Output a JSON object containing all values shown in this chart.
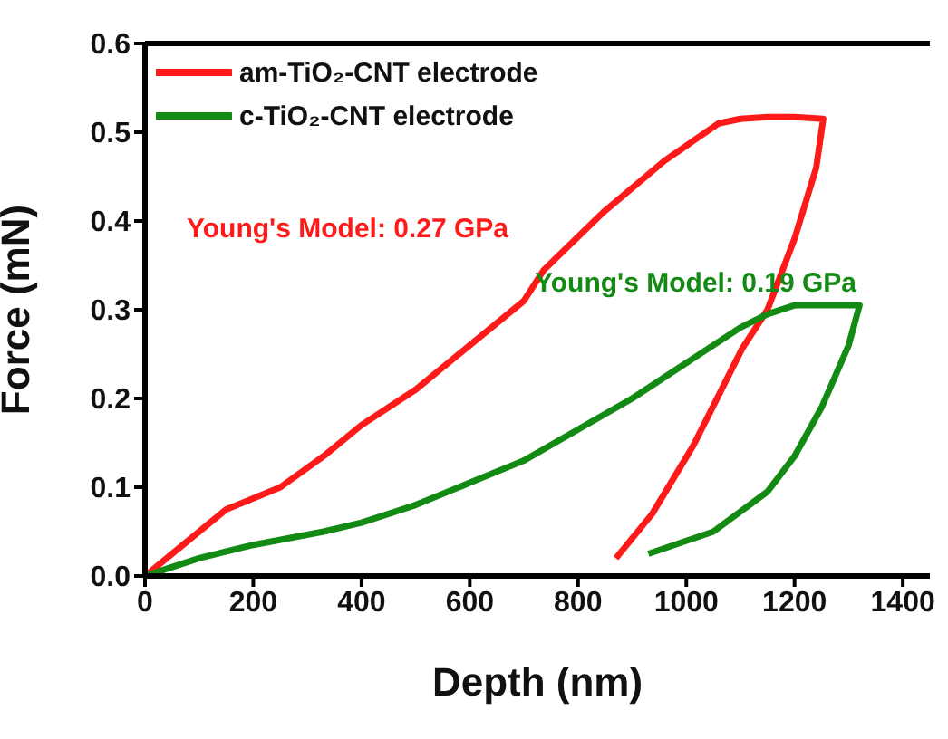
{
  "chart_data": {
    "type": "line",
    "xlabel": "Depth (nm)",
    "ylabel": "Force (mN)",
    "xlim": [
      0,
      1450
    ],
    "xticks": [
      0,
      200,
      400,
      600,
      800,
      1000,
      1200,
      1400
    ],
    "ylim": [
      0,
      0.6
    ],
    "yticks": [
      {
        "value": 0,
        "label": "0.0"
      },
      0.1,
      0.2,
      0.3,
      0.4,
      0.5,
      0.6
    ],
    "grid": false,
    "legend": "top left",
    "marker": "none",
    "line_style": "solid",
    "annotations": [
      "Young's Model:  0.27 GPa",
      "Young's Model:  0.19 GPa"
    ],
    "series": [
      {
        "name": "am-TiO₂-CNT electrode",
        "color": "#ff1a1a",
        "x": [
          0,
          50,
          150,
          250,
          330,
          400,
          500,
          600,
          700,
          737,
          847,
          960,
          1060,
          1100,
          1150,
          1200,
          1253,
          1240,
          1200,
          1150,
          1103,
          1013,
          937,
          870
        ],
        "values": [
          0,
          0.025,
          0.075,
          0.1,
          0.135,
          0.17,
          0.21,
          0.26,
          0.31,
          0.345,
          0.41,
          0.468,
          0.51,
          0.515,
          0.517,
          0.517,
          0.515,
          0.46,
          0.38,
          0.3,
          0.256,
          0.147,
          0.07,
          0.02
        ]
      },
      {
        "name": "c-TiO₂-CNT electrode",
        "color": "#138a13",
        "x": [
          0,
          100,
          200,
          330,
          400,
          500,
          600,
          700,
          800,
          900,
          1000,
          1100,
          1150,
          1200,
          1260,
          1320,
          1300,
          1250,
          1200,
          1150,
          1050,
          930
        ],
        "values": [
          0,
          0.02,
          0.035,
          0.05,
          0.06,
          0.08,
          0.105,
          0.13,
          0.165,
          0.2,
          0.24,
          0.28,
          0.295,
          0.305,
          0.305,
          0.305,
          0.26,
          0.19,
          0.135,
          0.095,
          0.05,
          0.025
        ]
      }
    ]
  }
}
